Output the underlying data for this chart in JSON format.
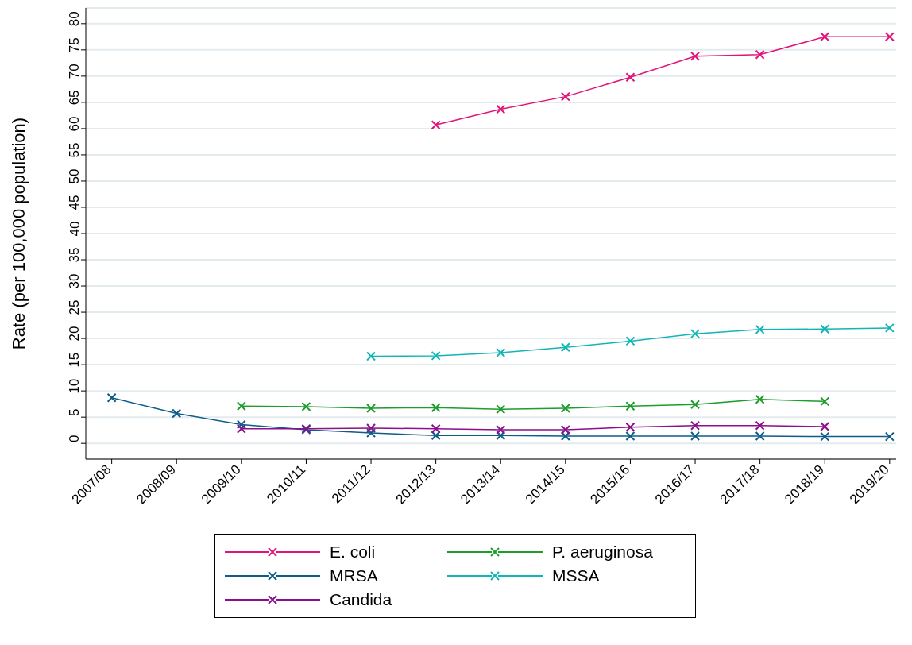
{
  "chart_data": {
    "type": "line",
    "ylabel": "Rate (per 100,000 population)",
    "categories": [
      "2007/08",
      "2008/09",
      "2009/10",
      "2010/11",
      "2011/12",
      "2012/13",
      "2013/14",
      "2014/15",
      "2015/16",
      "2016/17",
      "2017/18",
      "2018/19",
      "2019/20"
    ],
    "series": [
      {
        "name": "E. coli",
        "color": "#e0157a",
        "values": [
          null,
          null,
          null,
          null,
          null,
          60.7,
          63.7,
          66.1,
          69.8,
          73.8,
          74.1,
          77.5,
          77.5
        ]
      },
      {
        "name": "P. aeruginosa",
        "color": "#1e9c2c",
        "values": [
          null,
          null,
          7.1,
          7.0,
          6.7,
          6.8,
          6.5,
          6.7,
          7.1,
          7.4,
          8.4,
          8.0,
          null
        ]
      },
      {
        "name": "MRSA",
        "color": "#0d5c8a",
        "values": [
          8.7,
          5.7,
          3.6,
          2.6,
          2.0,
          1.5,
          1.5,
          1.4,
          1.4,
          1.4,
          1.4,
          1.3,
          1.3
        ]
      },
      {
        "name": "MSSA",
        "color": "#12b5b5",
        "values": [
          null,
          null,
          null,
          null,
          16.6,
          16.7,
          17.3,
          18.3,
          19.5,
          20.9,
          21.7,
          21.8,
          22.0
        ]
      },
      {
        "name": "Candida",
        "color": "#8b108b",
        "values": [
          null,
          null,
          2.8,
          2.8,
          2.9,
          2.8,
          2.6,
          2.6,
          3.1,
          3.4,
          3.4,
          3.2,
          null
        ]
      }
    ],
    "ylim": [
      -3,
      83
    ],
    "yticks": [
      0,
      5,
      10,
      15,
      20,
      25,
      30,
      35,
      40,
      45,
      50,
      55,
      60,
      65,
      70,
      75,
      80
    ],
    "grid": "y",
    "legend": "bottom",
    "marker": "cross",
    "line_style": "solid"
  }
}
